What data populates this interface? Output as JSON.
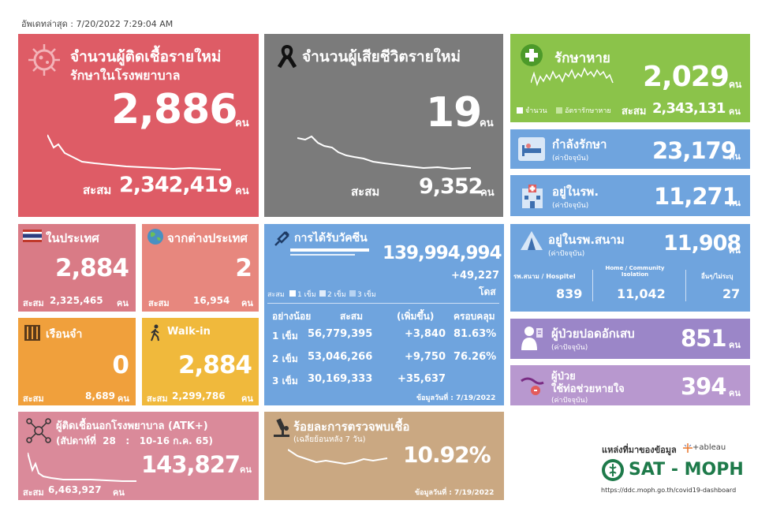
{
  "updated": "อัพเดทล่าสุด : 7/20/2022 7:29:04 AM",
  "colors": {
    "red": "#de5c66",
    "grey": "#7b7b7b",
    "green": "#8bc34a",
    "blue": "#6fa4de",
    "pink": "#d97b86",
    "salmon": "#e7877e",
    "orange": "#f0a03c",
    "yellow": "#f0b93c",
    "purple": "#9b86c8",
    "lilac": "#b898cf",
    "atk": "#da8a9a",
    "tan": "#caa882"
  },
  "new_cases": {
    "title": "จำนวนผู้ติดเชื้อรายใหม่",
    "subtitle": "รักษาในโรงพยาบาล",
    "value": "2,886",
    "unit": "คน",
    "cum_label": "สะสม",
    "cum": "2,342,419",
    "cum_unit": "คน"
  },
  "deaths": {
    "title": "จำนวนผู้เสียชีวิตรายใหม่",
    "value": "19",
    "unit": "คน",
    "cum_label": "สะสม",
    "cum": "9,352",
    "cum_unit": "คน"
  },
  "recovered": {
    "title": "รักษาหาย",
    "value": "2,029",
    "unit": "คน",
    "legend1": "จำนวน",
    "legend2": "อัตรารักษาหาย",
    "cum_label": "สะสม",
    "cum": "2,343,131",
    "cum_unit": "คน"
  },
  "treating": {
    "title": "กำลังรักษา",
    "sub": "(ค่าปัจจุบัน)",
    "value": "23,179",
    "unit": "คน"
  },
  "hospital": {
    "title": "อยู่ในรพ.",
    "sub": "(ค่าปัจจุบัน)",
    "value": "11,271",
    "unit": "คน"
  },
  "field": {
    "title": "อยู่ในรพ.สนาม",
    "sub": "(ค่าปัจจุบัน)",
    "value": "11,908",
    "unit": "คน",
    "c1_label": "รพ.สนาม / Hospitel",
    "c1": "839",
    "c2_label": "Home / Community Isolation",
    "c2": "11,042",
    "c3_label": "อื่นๆ/ไม่ระบุ",
    "c3": "27"
  },
  "domestic": {
    "title": "ในประเทศ",
    "value": "2,884",
    "cum_label": "สะสม",
    "cum": "2,325,465",
    "cum_unit": "คน"
  },
  "abroad": {
    "title": "จากต่างประเทศ",
    "value": "2",
    "cum_label": "สะสม",
    "cum": "16,954",
    "cum_unit": "คน"
  },
  "prison": {
    "title": "เรือนจำ",
    "value": "0",
    "cum_label": "สะสม",
    "cum": "8,689",
    "cum_unit": "คน"
  },
  "walkin": {
    "title": "Walk-in",
    "value": "2,884",
    "cum_label": "สะสม",
    "cum": "2,299,786",
    "cum_unit": "คน"
  },
  "vaccine": {
    "title": "การได้รับวัคซีน",
    "total": "139,994,994",
    "delta": "+49,227",
    "unit": "โดส",
    "legend": [
      "สะสม",
      "1 เข็ม",
      "2 เข็ม",
      "3 เข็ม"
    ],
    "headers": [
      "อย่างน้อย",
      "สะสม",
      "(เพิ่มขึ้น)",
      "ครอบคลุม"
    ],
    "rows": [
      {
        "d": "1 เข็ม",
        "c": "56,779,395",
        "i": "+3,840",
        "p": "81.63%"
      },
      {
        "d": "2 เข็ม",
        "c": "53,046,266",
        "i": "+9,750",
        "p": "76.26%"
      },
      {
        "d": "3 เข็ม",
        "c": "30,169,333",
        "i": "+35,637",
        "p": ""
      }
    ],
    "date": "ข้อมูลวันที่ : 7/19/2022"
  },
  "pneumonia": {
    "title": "ผู้ป่วยปอดอักเสบ",
    "sub": "(ค่าปัจจุบัน)",
    "value": "851",
    "unit": "คน"
  },
  "ventilator": {
    "title1": "ผู้ป่วย",
    "title2": "ใช้ท่อช่วยหายใจ",
    "sub": "(ค่าปัจจุบัน)",
    "value": "394",
    "unit": "คน"
  },
  "atk": {
    "title": "ผู้ติดเชื้อนอกโรงพยาบาล (ATK+)",
    "week": "(สัปดาห์ที่  28   :   10-16 ก.ค. 65)",
    "value": "143,827",
    "unit": "คน",
    "cum_label": "สะสม",
    "cum": "6,463,927",
    "cum_unit": "คน"
  },
  "positivity": {
    "title": "ร้อยละการตรวจพบเชื้อ",
    "sub": "(เฉลี่ยย้อนหลัง 7 วัน)",
    "value": "10.92%",
    "date": "ข้อมูลวันที่ : 7/19/2022"
  },
  "source": {
    "label": "แหล่งที่มาของข้อมูล",
    "tableau": "+ableau",
    "brand": "SAT - MOPH",
    "url": "https://ddc.moph.go.th/covid19-dashboard"
  }
}
